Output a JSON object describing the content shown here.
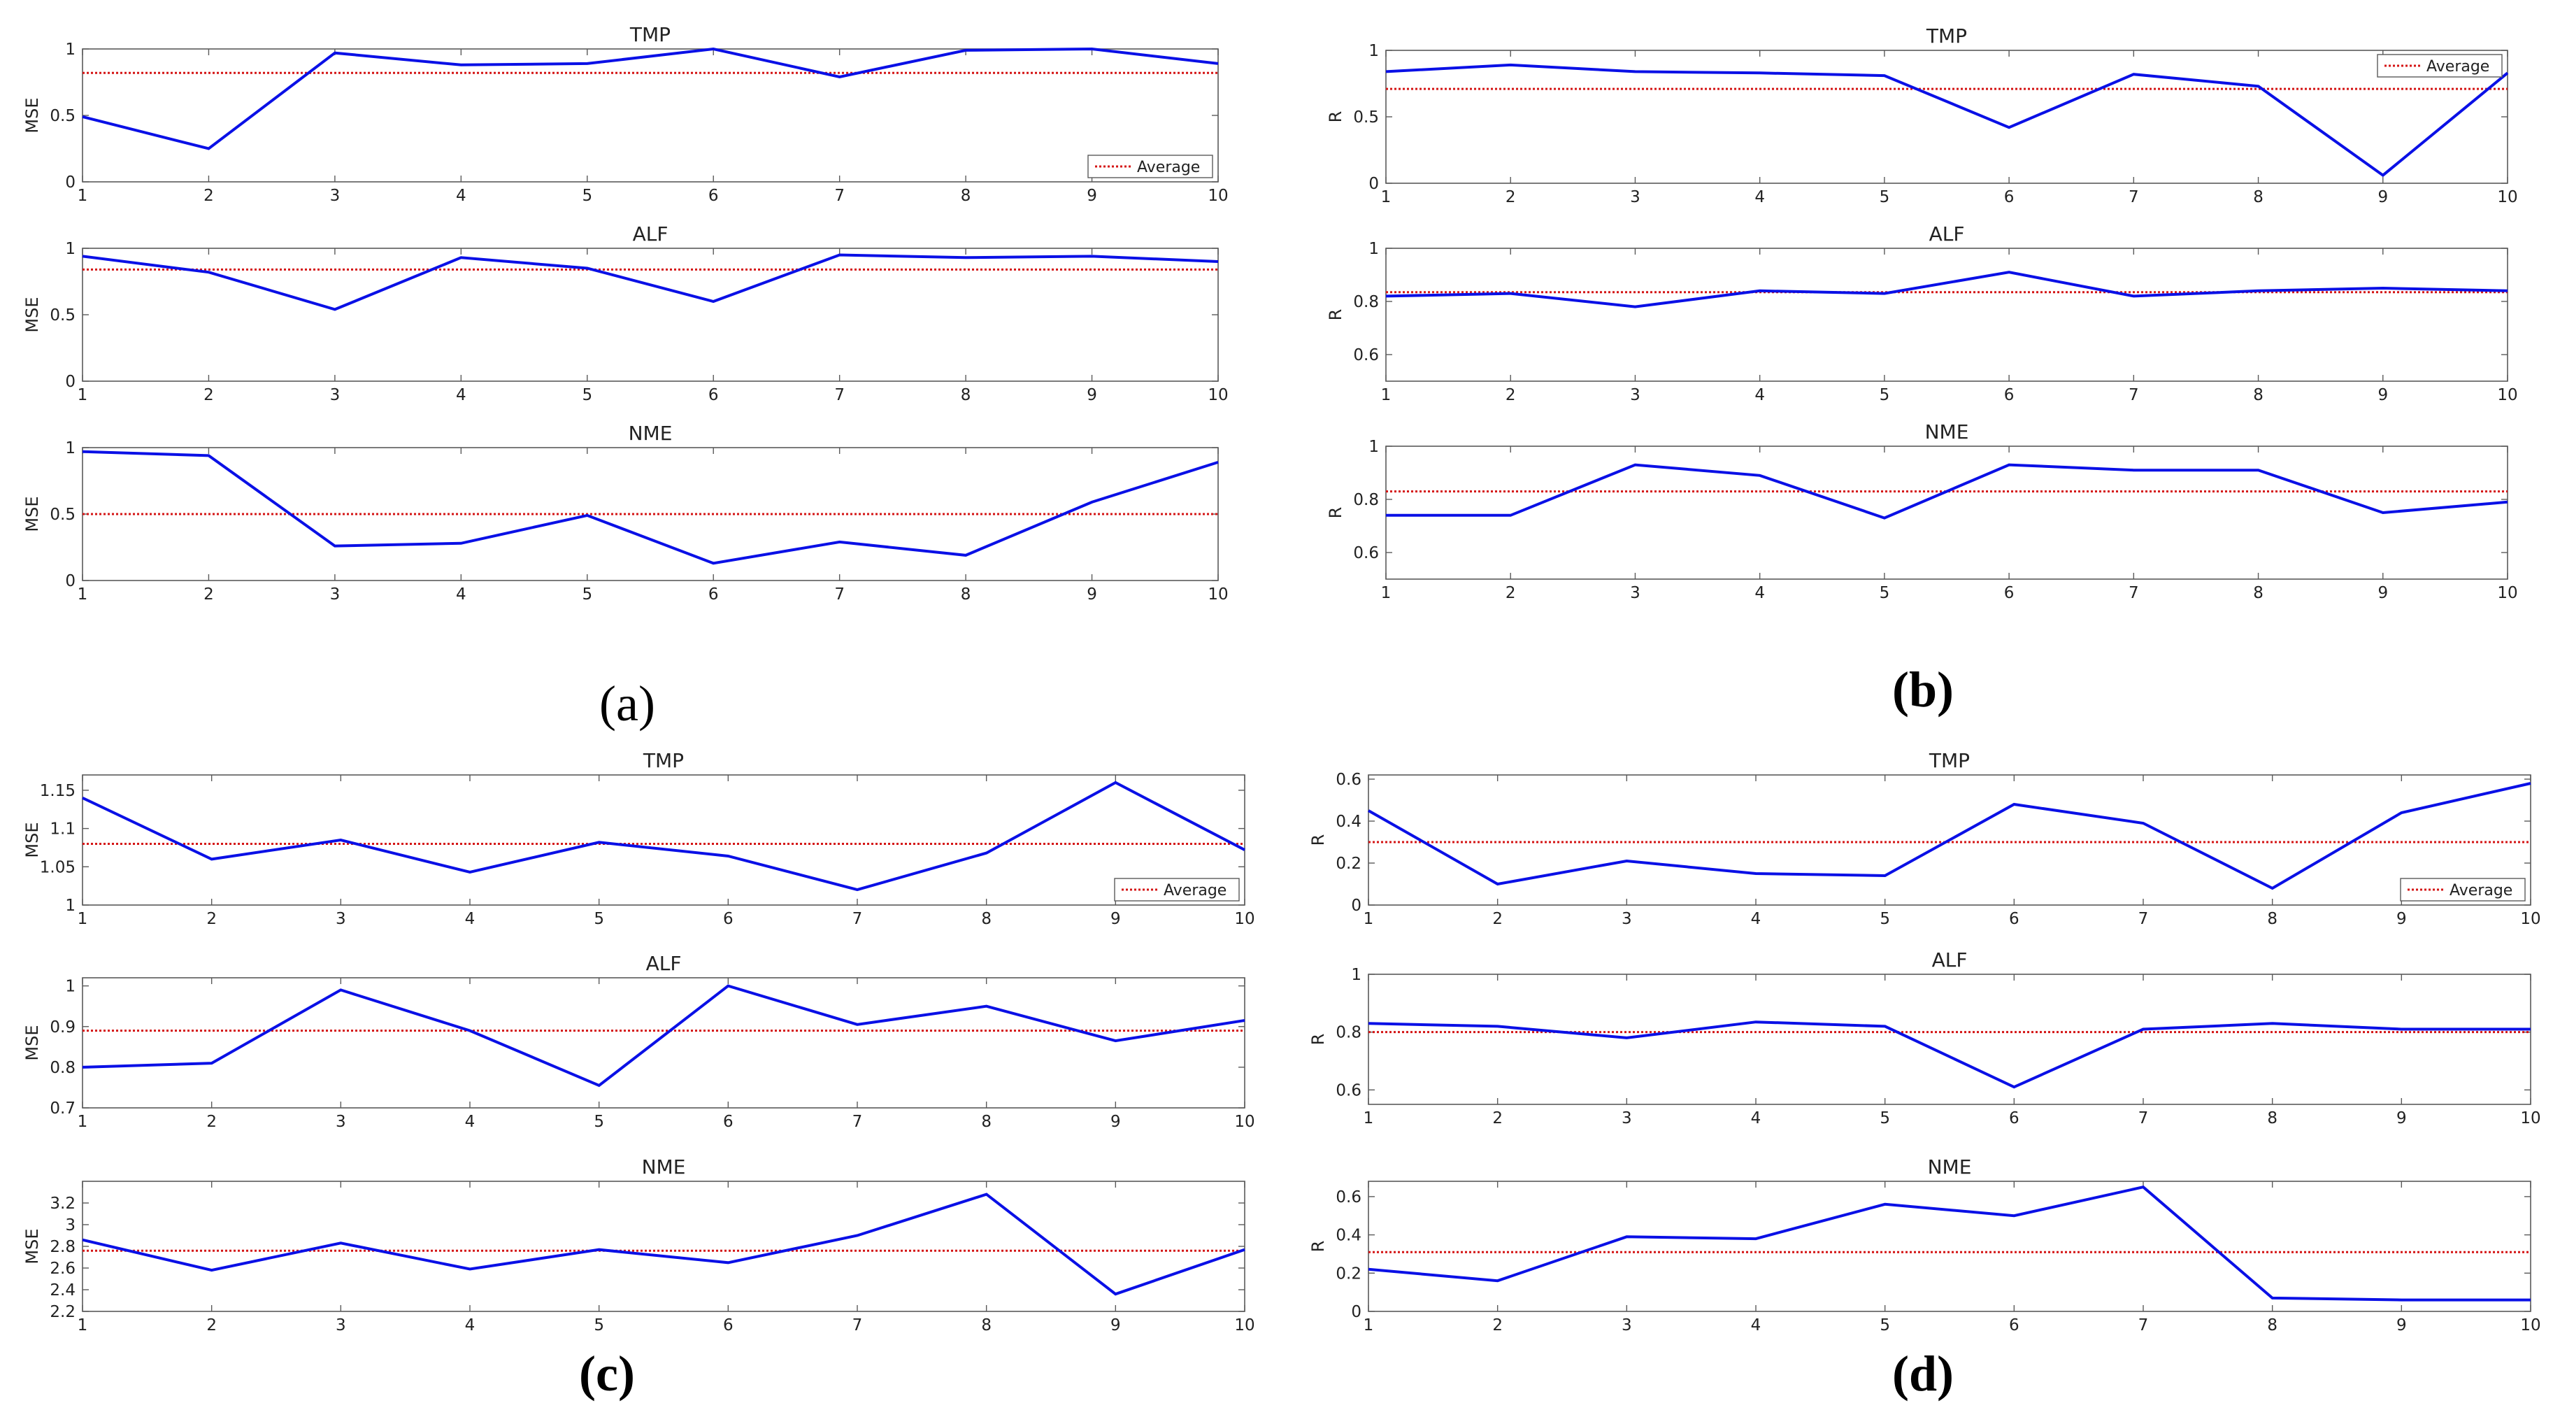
{
  "colors": {
    "series": "#0a10e6",
    "average": "#d41414",
    "axis": "#5a5a5a"
  },
  "panel_labels": [
    "(a)",
    "(b)",
    "(c)",
    "(d)"
  ],
  "chart_data": [
    {
      "panel": "(a)",
      "type": "line",
      "title": "TMP",
      "ylabel": "MSE",
      "x": [
        1,
        2,
        3,
        4,
        5,
        6,
        7,
        8,
        9,
        10
      ],
      "xlim": [
        1,
        10
      ],
      "ylim": [
        0,
        1
      ],
      "yticks": [
        0,
        0.5,
        1
      ],
      "series": [
        {
          "values": [
            0.49,
            0.25,
            0.97,
            0.88,
            0.89,
            1.0,
            0.79,
            0.99,
            1.0,
            0.89
          ]
        }
      ],
      "average": {
        "name": "Average",
        "value": 0.82
      },
      "legend": "bottom-right"
    },
    {
      "panel": "(a)",
      "type": "line",
      "title": "ALF",
      "ylabel": "MSE",
      "x": [
        1,
        2,
        3,
        4,
        5,
        6,
        7,
        8,
        9,
        10
      ],
      "xlim": [
        1,
        10
      ],
      "ylim": [
        0,
        1
      ],
      "yticks": [
        0,
        0.5,
        1
      ],
      "series": [
        {
          "values": [
            0.94,
            0.82,
            0.54,
            0.93,
            0.85,
            0.6,
            0.95,
            0.93,
            0.94,
            0.9
          ]
        }
      ],
      "average": {
        "name": "Average",
        "value": 0.84
      },
      "legend": null
    },
    {
      "panel": "(a)",
      "type": "line",
      "title": "NME",
      "ylabel": "MSE",
      "x": [
        1,
        2,
        3,
        4,
        5,
        6,
        7,
        8,
        9,
        10
      ],
      "xlim": [
        1,
        10
      ],
      "ylim": [
        0,
        1
      ],
      "yticks": [
        0,
        0.5,
        1
      ],
      "series": [
        {
          "values": [
            0.97,
            0.94,
            0.26,
            0.28,
            0.49,
            0.13,
            0.29,
            0.19,
            0.59,
            0.89
          ]
        }
      ],
      "average": {
        "name": "Average",
        "value": 0.5
      },
      "legend": null
    },
    {
      "panel": "(b)",
      "type": "line",
      "title": "TMP",
      "ylabel": "R",
      "x": [
        1,
        2,
        3,
        4,
        5,
        6,
        7,
        8,
        9,
        10
      ],
      "xlim": [
        1,
        10
      ],
      "ylim": [
        0,
        1
      ],
      "yticks": [
        0,
        0.5,
        1
      ],
      "series": [
        {
          "values": [
            0.84,
            0.89,
            0.84,
            0.83,
            0.81,
            0.42,
            0.82,
            0.73,
            0.06,
            0.83
          ]
        }
      ],
      "average": {
        "name": "Average",
        "value": 0.71
      },
      "legend": "top-right"
    },
    {
      "panel": "(b)",
      "type": "line",
      "title": "ALF",
      "ylabel": "R",
      "x": [
        1,
        2,
        3,
        4,
        5,
        6,
        7,
        8,
        9,
        10
      ],
      "xlim": [
        1,
        10
      ],
      "ylim": [
        0.5,
        1
      ],
      "yticks": [
        0.6,
        0.8,
        1
      ],
      "series": [
        {
          "values": [
            0.82,
            0.83,
            0.78,
            0.84,
            0.83,
            0.91,
            0.82,
            0.84,
            0.85,
            0.84
          ]
        }
      ],
      "average": {
        "name": "Average",
        "value": 0.835
      },
      "legend": null
    },
    {
      "panel": "(b)",
      "type": "line",
      "title": "NME",
      "ylabel": "R",
      "x": [
        1,
        2,
        3,
        4,
        5,
        6,
        7,
        8,
        9,
        10
      ],
      "xlim": [
        1,
        10
      ],
      "ylim": [
        0.5,
        1
      ],
      "yticks": [
        0.6,
        0.8,
        1
      ],
      "series": [
        {
          "values": [
            0.74,
            0.74,
            0.93,
            0.89,
            0.73,
            0.93,
            0.91,
            0.91,
            0.75,
            0.79
          ]
        }
      ],
      "average": {
        "name": "Average",
        "value": 0.83
      },
      "legend": null
    },
    {
      "panel": "(c)",
      "type": "line",
      "title": "TMP",
      "ylabel": "MSE",
      "x": [
        1,
        2,
        3,
        4,
        5,
        6,
        7,
        8,
        9,
        10
      ],
      "xlim": [
        1,
        10
      ],
      "ylim": [
        1,
        1.17
      ],
      "yticks": [
        1,
        1.05,
        1.1,
        1.15
      ],
      "series": [
        {
          "values": [
            1.14,
            1.06,
            1.085,
            1.043,
            1.082,
            1.064,
            1.02,
            1.068,
            1.16,
            1.072
          ]
        }
      ],
      "average": {
        "name": "Average",
        "value": 1.08
      },
      "legend": "bottom-right"
    },
    {
      "panel": "(c)",
      "type": "line",
      "title": "ALF",
      "ylabel": "MSE",
      "x": [
        1,
        2,
        3,
        4,
        5,
        6,
        7,
        8,
        9,
        10
      ],
      "xlim": [
        1,
        10
      ],
      "ylim": [
        0.7,
        1.02
      ],
      "yticks": [
        0.7,
        0.8,
        0.9,
        1
      ],
      "series": [
        {
          "values": [
            0.8,
            0.81,
            0.99,
            0.89,
            0.755,
            1.0,
            0.905,
            0.95,
            0.865,
            0.915
          ]
        }
      ],
      "average": {
        "name": "Average",
        "value": 0.89
      },
      "legend": null
    },
    {
      "panel": "(c)",
      "type": "line",
      "title": "NME",
      "ylabel": "MSE",
      "x": [
        1,
        2,
        3,
        4,
        5,
        6,
        7,
        8,
        9,
        10
      ],
      "xlim": [
        1,
        10
      ],
      "ylim": [
        2.2,
        3.4
      ],
      "yticks": [
        2.2,
        2.4,
        2.6,
        2.8,
        3,
        3.2
      ],
      "series": [
        {
          "values": [
            2.86,
            2.58,
            2.83,
            2.59,
            2.77,
            2.65,
            2.9,
            3.28,
            2.36,
            2.77
          ]
        }
      ],
      "average": {
        "name": "Average",
        "value": 2.76
      },
      "legend": null
    },
    {
      "panel": "(d)",
      "type": "line",
      "title": "TMP",
      "ylabel": "R",
      "x": [
        1,
        2,
        3,
        4,
        5,
        6,
        7,
        8,
        9,
        10
      ],
      "xlim": [
        1,
        10
      ],
      "ylim": [
        0,
        0.62
      ],
      "yticks": [
        0,
        0.2,
        0.4,
        0.6
      ],
      "series": [
        {
          "values": [
            0.45,
            0.1,
            0.21,
            0.15,
            0.14,
            0.48,
            0.39,
            0.08,
            0.44,
            0.58
          ]
        }
      ],
      "average": {
        "name": "Average",
        "value": 0.3
      },
      "legend": "bottom-right"
    },
    {
      "panel": "(d)",
      "type": "line",
      "title": "ALF",
      "ylabel": "R",
      "x": [
        1,
        2,
        3,
        4,
        5,
        6,
        7,
        8,
        9,
        10
      ],
      "xlim": [
        1,
        10
      ],
      "ylim": [
        0.55,
        1
      ],
      "yticks": [
        0.6,
        0.8,
        1
      ],
      "series": [
        {
          "values": [
            0.83,
            0.82,
            0.78,
            0.835,
            0.82,
            0.61,
            0.81,
            0.83,
            0.81,
            0.81
          ]
        }
      ],
      "average": {
        "name": "Average",
        "value": 0.8
      },
      "legend": null
    },
    {
      "panel": "(d)",
      "type": "line",
      "title": "NME",
      "ylabel": "R",
      "x": [
        1,
        2,
        3,
        4,
        5,
        6,
        7,
        8,
        9,
        10
      ],
      "xlim": [
        1,
        10
      ],
      "ylim": [
        0,
        0.68
      ],
      "yticks": [
        0,
        0.2,
        0.4,
        0.6
      ],
      "series": [
        {
          "values": [
            0.22,
            0.16,
            0.39,
            0.38,
            0.56,
            0.5,
            0.65,
            0.07,
            0.06,
            0.06
          ]
        }
      ],
      "average": {
        "name": "Average",
        "value": 0.31
      },
      "legend": null
    }
  ]
}
